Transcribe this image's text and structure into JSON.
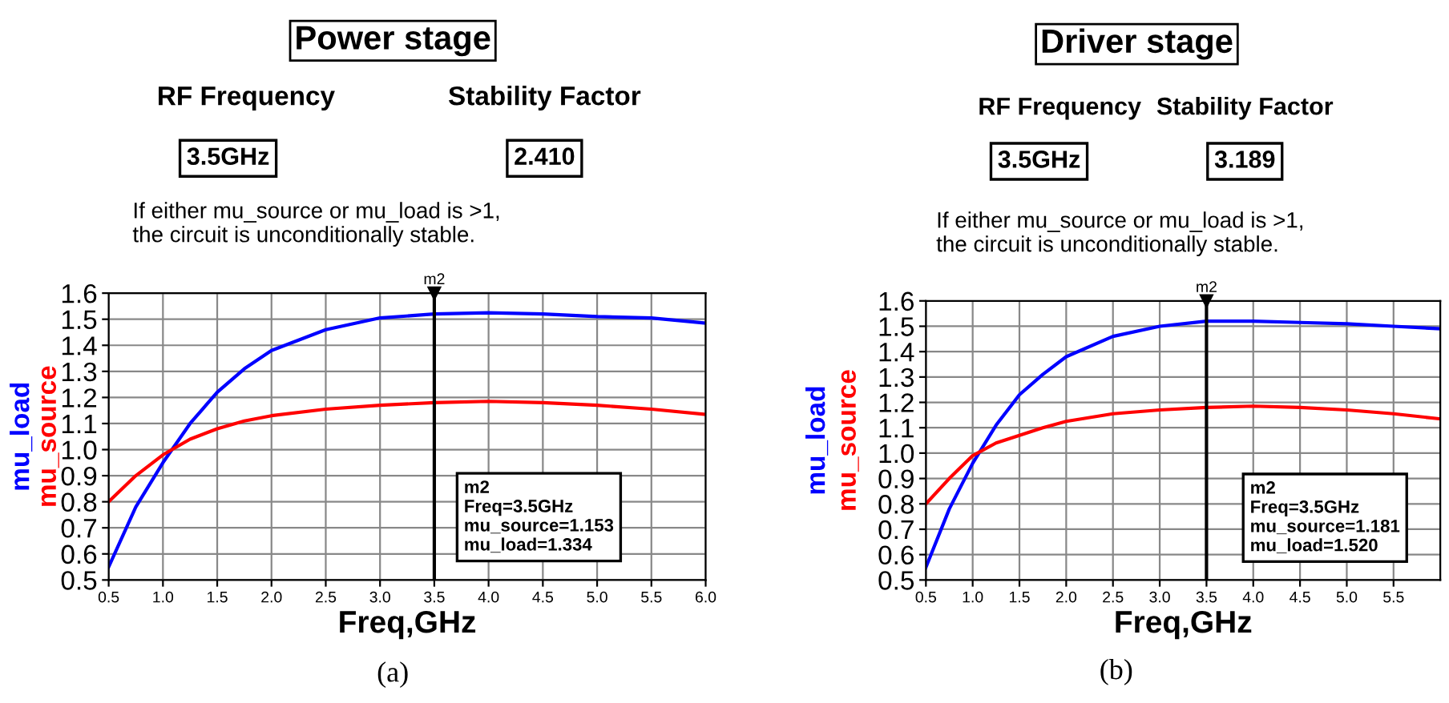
{
  "chart_data": [
    {
      "type": "line",
      "title": "Power stage",
      "xlabel": "Freq,GHz",
      "xlim": [
        0.5,
        6.0
      ],
      "ylim": [
        0.5,
        1.6
      ],
      "xticks": [
        {
          "value": 0.5,
          "label": "0.5"
        },
        {
          "value": 1.0,
          "label": "1.0"
        },
        {
          "value": 1.5,
          "label": "1.5"
        },
        {
          "value": 2.0,
          "label": "2.0"
        },
        {
          "value": 2.5,
          "label": "2.5"
        },
        {
          "value": 3.0,
          "label": "3.0"
        },
        {
          "value": 3.5,
          "label": "3.5"
        },
        {
          "value": 4.0,
          "label": "4.0"
        },
        {
          "value": 4.5,
          "label": "4.5"
        },
        {
          "value": 5.0,
          "label": "5.0"
        },
        {
          "value": 5.5,
          "label": "5.5"
        },
        {
          "value": 6.0,
          "label": "6.0"
        }
      ],
      "yticks": [
        {
          "value": 0.5,
          "label": "0.5"
        },
        {
          "value": 0.6,
          "label": "0.6"
        },
        {
          "value": 0.7,
          "label": "0.7"
        },
        {
          "value": 0.8,
          "label": "0.8"
        },
        {
          "value": 0.9,
          "label": "0.9"
        },
        {
          "value": 1.0,
          "label": "1.0"
        },
        {
          "value": 1.1,
          "label": "1.1"
        },
        {
          "value": 1.2,
          "label": "1.2"
        },
        {
          "value": 1.3,
          "label": "1.3"
        },
        {
          "value": 1.4,
          "label": "1.4"
        },
        {
          "value": 1.5,
          "label": "1.5"
        },
        {
          "value": 1.6,
          "label": "1.6"
        }
      ],
      "x": [
        0.5,
        0.75,
        1.0,
        1.25,
        1.5,
        1.75,
        2.0,
        2.5,
        3.0,
        3.5,
        4.0,
        4.5,
        5.0,
        5.5,
        6.0
      ],
      "series": [
        {
          "name": "mu_load",
          "color": "#0000ff",
          "values": [
            0.55,
            0.78,
            0.95,
            1.1,
            1.22,
            1.31,
            1.38,
            1.46,
            1.505,
            1.52,
            1.525,
            1.52,
            1.51,
            1.505,
            1.485
          ]
        },
        {
          "name": "mu_source",
          "color": "#ff0000",
          "values": [
            0.8,
            0.9,
            0.98,
            1.04,
            1.08,
            1.11,
            1.13,
            1.155,
            1.17,
            1.18,
            1.185,
            1.18,
            1.17,
            1.155,
            1.135
          ]
        }
      ],
      "ref_lines": [
        {
          "axis": "x",
          "value": 3.5,
          "label": "m2",
          "color": "#000000"
        }
      ],
      "grid": true,
      "legend": false,
      "annotations": [
        "RF Frequency",
        "Stability Factor",
        "3.5GHz",
        "2.410",
        "If either mu_source or mu_load is >1,\nthe circuit is unconditionally stable.",
        "m2\nFreq=3.5GHz\nmu_source=1.153\nmu_load=1.334",
        "(a)"
      ]
    },
    {
      "type": "line",
      "title": "Driver stage",
      "xlabel": "Freq,GHz",
      "xlim": [
        0.5,
        6.0
      ],
      "ylim": [
        0.5,
        1.6
      ],
      "xticks": [
        {
          "value": 0.5,
          "label": "0.5"
        },
        {
          "value": 1.0,
          "label": "1.0"
        },
        {
          "value": 1.5,
          "label": "1.5"
        },
        {
          "value": 2.0,
          "label": "2.0"
        },
        {
          "value": 2.5,
          "label": "2.5"
        },
        {
          "value": 3.0,
          "label": "3.0"
        },
        {
          "value": 3.5,
          "label": "3.5"
        },
        {
          "value": 4.0,
          "label": "4.0"
        },
        {
          "value": 4.5,
          "label": "4.5"
        },
        {
          "value": 5.0,
          "label": "5.0"
        },
        {
          "value": 5.5,
          "label": "5.5"
        }
      ],
      "yticks": [
        {
          "value": 0.5,
          "label": "0.5"
        },
        {
          "value": 0.6,
          "label": "0.6"
        },
        {
          "value": 0.7,
          "label": "0.7"
        },
        {
          "value": 0.8,
          "label": "0.8"
        },
        {
          "value": 0.9,
          "label": "0.9"
        },
        {
          "value": 1.0,
          "label": "1.0"
        },
        {
          "value": 1.1,
          "label": "1.1"
        },
        {
          "value": 1.2,
          "label": "1.2"
        },
        {
          "value": 1.3,
          "label": "1.3"
        },
        {
          "value": 1.4,
          "label": "1.4"
        },
        {
          "value": 1.5,
          "label": "1.5"
        },
        {
          "value": 1.6,
          "label": "1.6"
        }
      ],
      "x": [
        0.5,
        0.75,
        1.0,
        1.25,
        1.5,
        1.75,
        2.0,
        2.5,
        3.0,
        3.5,
        4.0,
        4.5,
        5.0,
        5.5,
        6.0
      ],
      "series": [
        {
          "name": "mu_load",
          "color": "#0000ff",
          "values": [
            0.55,
            0.78,
            0.96,
            1.11,
            1.23,
            1.31,
            1.38,
            1.46,
            1.5,
            1.52,
            1.52,
            1.515,
            1.51,
            1.5,
            1.49
          ]
        },
        {
          "name": "mu_source",
          "color": "#ff0000",
          "values": [
            0.8,
            0.9,
            0.99,
            1.04,
            1.07,
            1.1,
            1.125,
            1.155,
            1.17,
            1.18,
            1.185,
            1.18,
            1.17,
            1.155,
            1.135
          ]
        }
      ],
      "ref_lines": [
        {
          "axis": "x",
          "value": 3.5,
          "label": "m2",
          "color": "#000000"
        }
      ],
      "grid": true,
      "legend": false,
      "annotations": [
        "RF Frequency",
        "Stability Factor",
        "3.5GHz",
        "3.189",
        "If either mu_source or mu_load is >1,\nthe circuit is unconditionally stable.",
        "m2\nFreq=3.5GHz\nmu_source=1.181\nmu_load=1.520",
        "(b)"
      ]
    }
  ]
}
